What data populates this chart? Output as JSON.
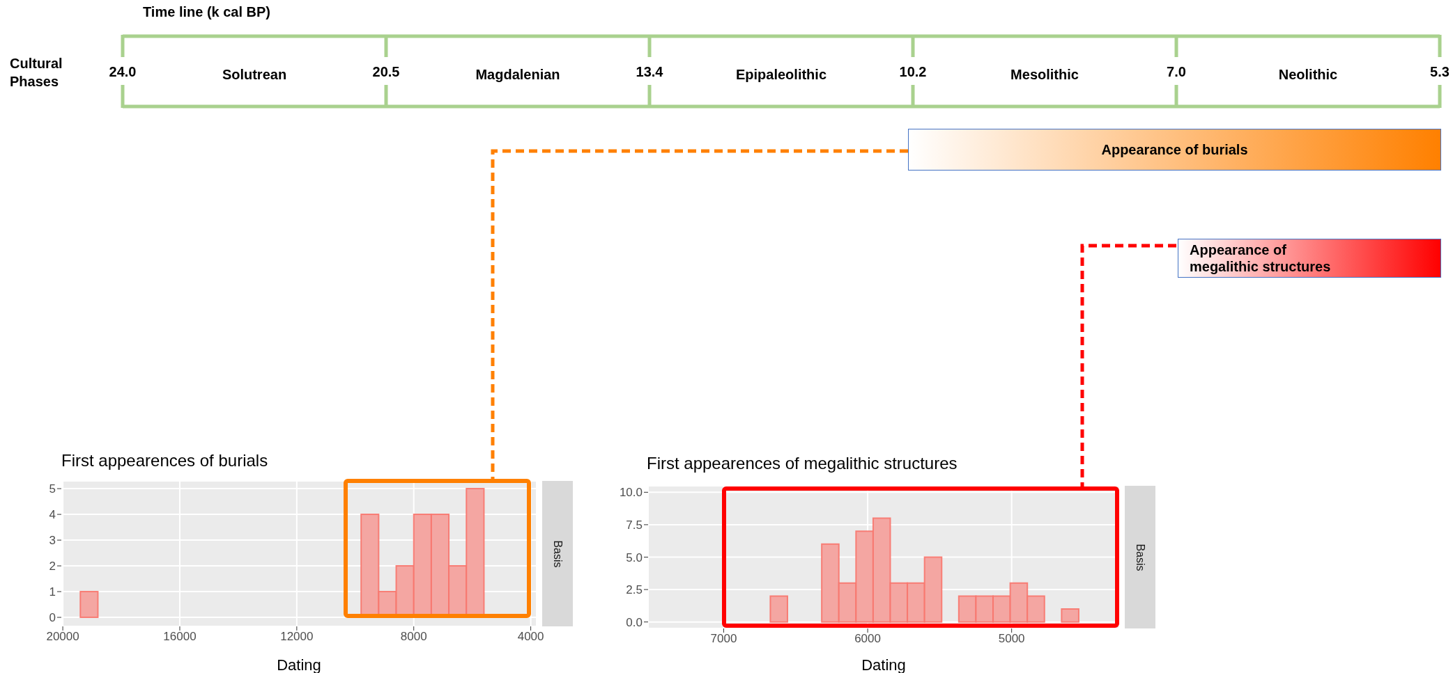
{
  "chart_data": [
    {
      "type": "other",
      "title": "Time line (k cal BP)",
      "ylabel": "Cultural Phases",
      "categories": [
        "Solutrean",
        "Magdalenian",
        "Epipaleolithic",
        "Mesolithic",
        "Neolithic"
      ],
      "color": "#a9d18e",
      "annotations": [
        "24.0",
        "20.5",
        "13.4",
        "10.2",
        "7.0",
        "5.3",
        "Appearance of burials",
        "Appearance of megalithic structures"
      ]
    },
    {
      "type": "histogram",
      "title": "First appearences of burials",
      "xlabel": "Dating",
      "color": "#f4a6a2",
      "grid": true,
      "annotations": [
        "Basis"
      ],
      "bins": [
        19400,
        18800,
        18200,
        17600,
        17000,
        16400,
        15800,
        15200,
        14600,
        14000,
        13400,
        12800,
        12200,
        11600,
        11000,
        10400,
        9800,
        9200,
        8600,
        8000,
        7400,
        6800,
        6200,
        5600,
        5000,
        4400
      ],
      "values": [
        1,
        0,
        0,
        0,
        0,
        0,
        0,
        0,
        0,
        0,
        0,
        0,
        0,
        0,
        0,
        0,
        4,
        1,
        2,
        4,
        4,
        2,
        5,
        0,
        0
      ],
      "xlim": [
        20050,
        3800
      ],
      "xticks": [
        20000,
        16000,
        12000,
        8000,
        4000
      ],
      "ylim": [
        -0.35,
        5.3
      ],
      "yticks": [
        0,
        1,
        2,
        3,
        4,
        5
      ]
    },
    {
      "type": "histogram",
      "title": "First appearences of megalithic structures",
      "xlabel": "Dating",
      "color": "#f4a6a2",
      "grid": true,
      "annotations": [
        "Basis"
      ],
      "bins": [
        7390,
        7271,
        7152,
        7033,
        6914,
        6795,
        6676,
        6557,
        6438,
        6319,
        6200,
        6081,
        5962,
        5843,
        5724,
        5605,
        5486,
        5367,
        5248,
        5129,
        5010,
        4891,
        4772,
        4653,
        4534,
        4415
      ],
      "values": [
        0,
        0,
        0,
        0,
        0,
        0,
        2,
        0,
        0,
        6,
        3,
        7,
        8,
        3,
        3,
        5,
        0,
        2,
        2,
        2,
        3,
        2,
        0,
        1,
        0
      ],
      "xlim": [
        7525,
        4253
      ],
      "xticks": [
        7000,
        6000,
        5000
      ],
      "ylim": [
        -0.5,
        10.5
      ],
      "yticks": [
        {
          "value": 0,
          "label": "0.0"
        },
        2.5,
        {
          "value": 5,
          "label": "5.0"
        },
        7.5,
        {
          "value": 10,
          "label": "10.0"
        }
      ]
    }
  ]
}
